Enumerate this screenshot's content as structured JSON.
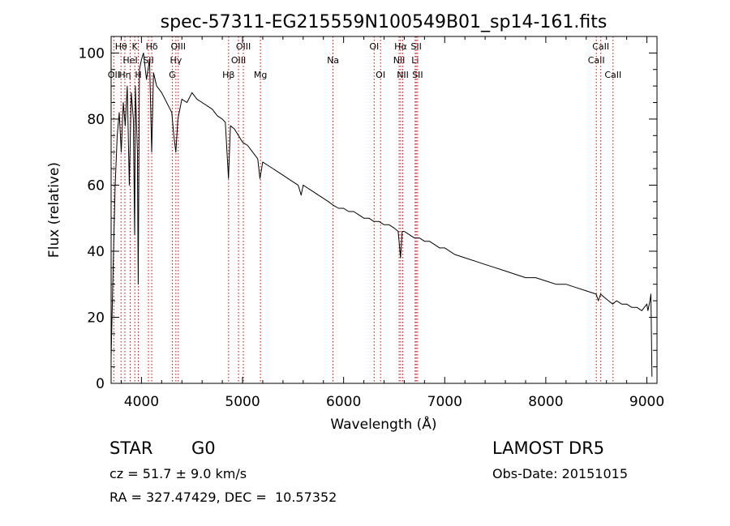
{
  "chart_data": {
    "type": "line",
    "title": "spec-57311-EG215559N100549B01_sp14-161.fits",
    "xlabel": "Wavelength (Å)",
    "ylabel": "Flux (relative)",
    "xlim": [
      3700,
      9100
    ],
    "ylim": [
      0,
      105
    ],
    "xticks": [
      4000,
      5000,
      6000,
      7000,
      8000,
      9000
    ],
    "yticks": [
      0,
      20,
      40,
      60,
      80,
      100
    ],
    "grid": false,
    "line_color": "#000000",
    "marker_color": "#cc0000",
    "series": [
      {
        "x": [
          3700,
          3720,
          3740,
          3760,
          3780,
          3800,
          3820,
          3840,
          3860,
          3880,
          3890,
          3900,
          3920,
          3933,
          3940,
          3960,
          3968,
          3980,
          4000,
          4020,
          4050,
          4080,
          4101,
          4120,
          4150,
          4200,
          4250,
          4300,
          4320,
          4340,
          4360,
          4400,
          4450,
          4500,
          4550,
          4600,
          4650,
          4700,
          4750,
          4800,
          4830,
          4861,
          4880,
          4920,
          4960,
          5000,
          5050,
          5100,
          5150,
          5172,
          5200,
          5250,
          5300,
          5350,
          5400,
          5450,
          5500,
          5550,
          5580,
          5600,
          5650,
          5700,
          5750,
          5800,
          5850,
          5893,
          5950,
          6000,
          6050,
          6100,
          6150,
          6200,
          6250,
          6300,
          6350,
          6400,
          6450,
          6500,
          6540,
          6563,
          6580,
          6600,
          6650,
          6700,
          6750,
          6800,
          6850,
          6900,
          6950,
          7000,
          7100,
          7200,
          7300,
          7400,
          7500,
          7600,
          7700,
          7800,
          7900,
          8000,
          8100,
          8200,
          8300,
          8400,
          8498,
          8520,
          8542,
          8580,
          8620,
          8662,
          8700,
          8750,
          8800,
          8850,
          8900,
          8950,
          9000,
          9010,
          9030,
          9040,
          9050
        ],
        "y": [
          8,
          35,
          60,
          75,
          82,
          70,
          85,
          78,
          90,
          60,
          75,
          88,
          80,
          45,
          90,
          70,
          30,
          95,
          98,
          100,
          92,
          98,
          70,
          94,
          90,
          88,
          85,
          82,
          75,
          70,
          80,
          86,
          85,
          88,
          86,
          85,
          84,
          83,
          81,
          80,
          79,
          62,
          78,
          77,
          75,
          73,
          72,
          70,
          68,
          62,
          67,
          66,
          65,
          64,
          63,
          62,
          61,
          60,
          57,
          60,
          59,
          58,
          57,
          56,
          55,
          54,
          53,
          53,
          52,
          52,
          51,
          50,
          50,
          49,
          49,
          48,
          48,
          47,
          46,
          38,
          46,
          46,
          45,
          44,
          44,
          43,
          43,
          42,
          41,
          41,
          39,
          38,
          37,
          36,
          35,
          34,
          33,
          32,
          32,
          31,
          30,
          30,
          29,
          28,
          27,
          25,
          27,
          26,
          25,
          24,
          25,
          24,
          24,
          23,
          23,
          22,
          24,
          22,
          25,
          27,
          2
        ]
      }
    ],
    "lines": [
      {
        "label": "OII",
        "x": 3727,
        "row": 3
      },
      {
        "label": "Hθ",
        "x": 3798,
        "row": 1
      },
      {
        "label": "Hη",
        "x": 3836,
        "row": 3
      },
      {
        "label": "HeI",
        "x": 3889,
        "row": 2
      },
      {
        "label": "K",
        "x": 3934,
        "row": 1
      },
      {
        "label": "H",
        "x": 3969,
        "row": 3
      },
      {
        "label": "SII",
        "x": 4069,
        "row": 2
      },
      {
        "label": "Hδ",
        "x": 4102,
        "row": 1
      },
      {
        "label": "G",
        "x": 4305,
        "row": 3
      },
      {
        "label": "Hγ",
        "x": 4341,
        "row": 2
      },
      {
        "label": "OIII",
        "x": 4364,
        "row": 1
      },
      {
        "label": "Hβ",
        "x": 4862,
        "row": 3
      },
      {
        "label": "OIII",
        "x": 4960,
        "row": 2
      },
      {
        "label": "OIII",
        "x": 5008,
        "row": 1
      },
      {
        "label": "Mg",
        "x": 5177,
        "row": 3
      },
      {
        "label": "Na",
        "x": 5895,
        "row": 2
      },
      {
        "label": "OI",
        "x": 6302,
        "row": 1
      },
      {
        "label": "OI",
        "x": 6365,
        "row": 3
      },
      {
        "label": "NII",
        "x": 6549,
        "row": 2
      },
      {
        "label": "Hα",
        "x": 6564,
        "row": 1
      },
      {
        "label": "NII",
        "x": 6585,
        "row": 3
      },
      {
        "label": "Li",
        "x": 6708,
        "row": 2
      },
      {
        "label": "SII",
        "x": 6718,
        "row": 1
      },
      {
        "label": "SII",
        "x": 6732,
        "row": 3
      },
      {
        "label": "CaII",
        "x": 8500,
        "row": 2
      },
      {
        "label": "CaII",
        "x": 8544,
        "row": 1
      },
      {
        "label": "CaII",
        "x": 8665,
        "row": 3
      }
    ]
  },
  "info": {
    "object_class": "STAR",
    "subclass": "G0",
    "survey": "LAMOST DR5",
    "redshift_text": "cz = 51.7 ± 9.0 km/s",
    "obs_date_text": "Obs-Date: 20151015",
    "coords_text": "RA = 327.47429, DEC =  10.57352"
  }
}
